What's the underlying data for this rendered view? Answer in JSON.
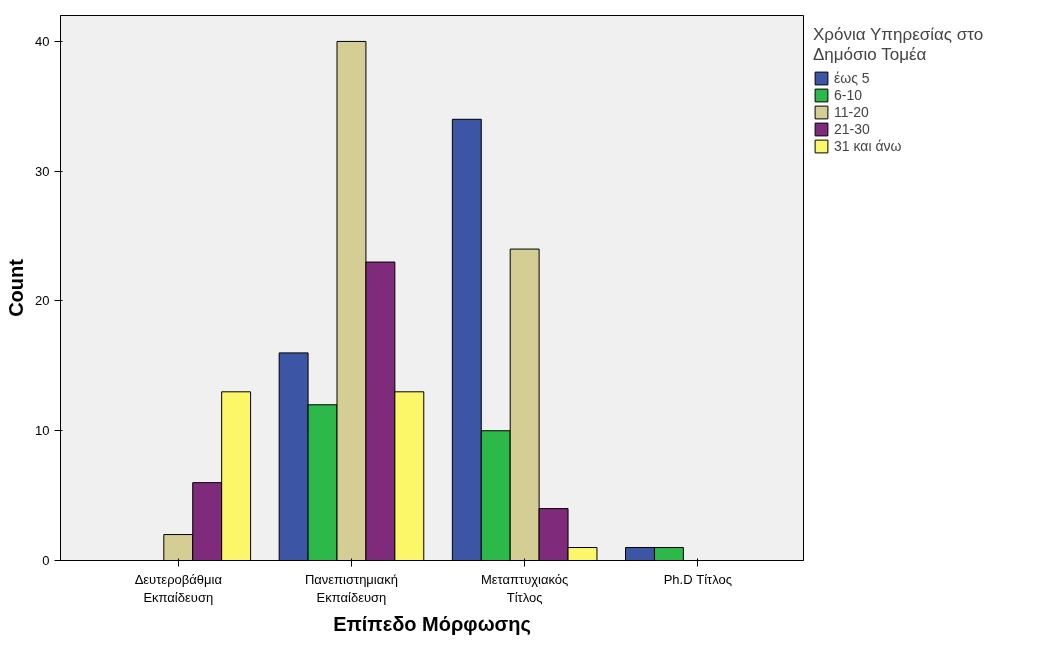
{
  "chart_data": {
    "type": "bar",
    "xlabel": "Επίπεδο Μόρφωσης",
    "ylabel": "Count",
    "legend_title": "Χρόνια Υπηρεσίας στο\nΔημόσιο Τομέα",
    "categories": [
      "Δευτεροβάθμια\nΕκπαίδευση",
      "Πανεπιστημιακή\nΕκπαίδευση",
      "Μεταπτυχιακός\nΤίτλος",
      "Ph.D Τίτλος"
    ],
    "series": [
      {
        "name": "έως 5",
        "color": "#3c55a5",
        "values": [
          null,
          16,
          34,
          1
        ]
      },
      {
        "name": "6-10",
        "color": "#2db84a",
        "values": [
          null,
          12,
          10,
          1
        ]
      },
      {
        "name": "11-20",
        "color": "#d4ce94",
        "values": [
          2,
          40,
          24,
          null
        ]
      },
      {
        "name": "21-30",
        "color": "#7f2a7a",
        "values": [
          6,
          23,
          4,
          null
        ]
      },
      {
        "name": "31 και άνω",
        "color": "#fbf769",
        "values": [
          13,
          13,
          1,
          null
        ]
      }
    ],
    "ylim": [
      0,
      42
    ],
    "yticks": [
      0,
      10,
      20,
      30,
      40
    ],
    "grid": false,
    "legend": "right"
  }
}
